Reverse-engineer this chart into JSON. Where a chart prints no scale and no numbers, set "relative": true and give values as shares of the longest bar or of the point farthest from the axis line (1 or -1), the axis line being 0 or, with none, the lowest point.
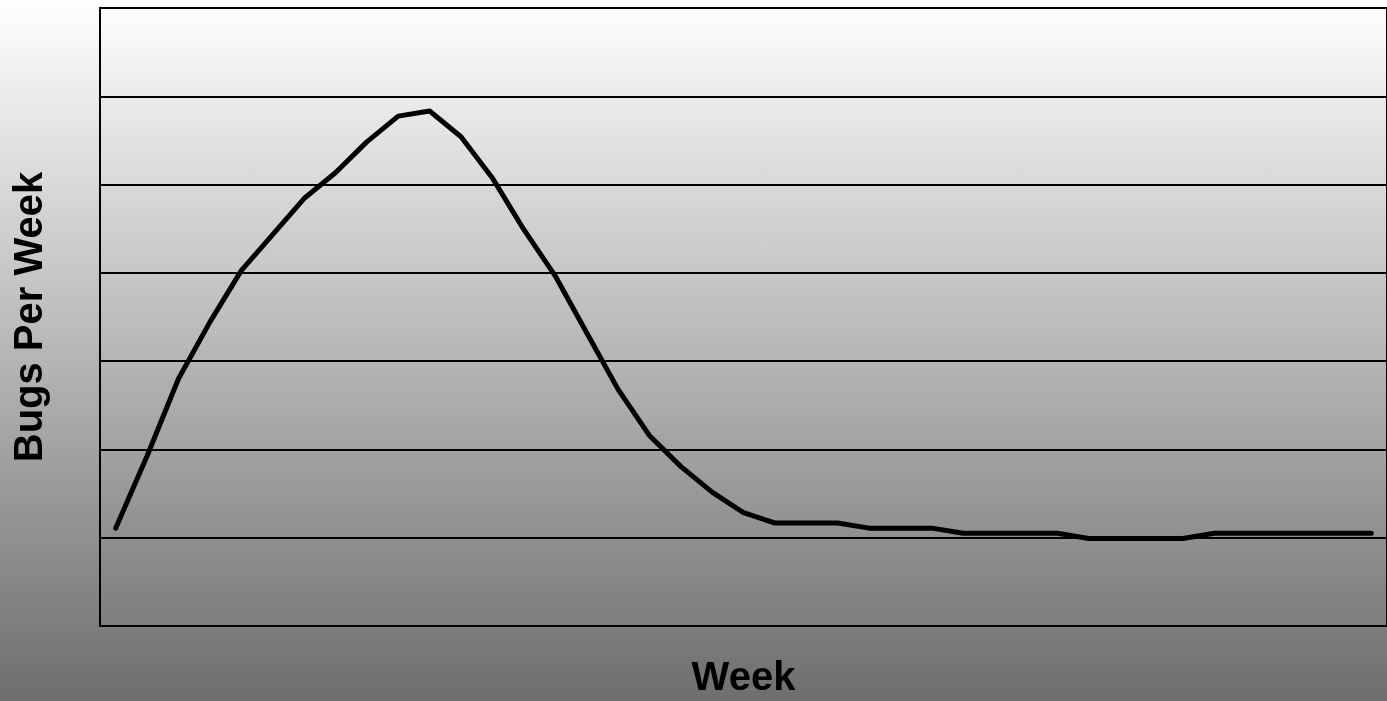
{
  "chart_data": {
    "type": "line",
    "xlabel": "Week",
    "ylabel": "Bugs Per Week",
    "relative": true,
    "grid": "y",
    "marker": "none",
    "line_style": "solid",
    "categories": [
      null,
      null,
      null,
      null,
      null,
      null,
      null,
      null,
      null,
      null,
      null,
      null,
      null,
      null,
      null,
      null,
      null,
      null,
      null,
      null,
      null,
      null,
      null,
      null,
      null,
      null,
      null,
      null,
      null,
      null,
      null,
      null,
      null,
      null,
      null,
      null,
      null,
      null,
      null,
      null,
      null
    ],
    "series": [
      {
        "color": "#000000",
        "values": [
          0.19,
          0.33,
          0.48,
          0.59,
          0.69,
          0.76,
          0.83,
          0.88,
          0.94,
          0.99,
          1.0,
          0.95,
          0.87,
          0.77,
          0.68,
          0.57,
          0.46,
          0.37,
          0.31,
          0.26,
          0.22,
          0.2,
          0.2,
          0.2,
          0.19,
          0.19,
          0.19,
          0.18,
          0.18,
          0.18,
          0.18,
          0.17,
          0.17,
          0.17,
          0.17,
          0.18,
          0.18,
          0.18,
          0.18,
          0.18,
          0.18
        ]
      }
    ]
  }
}
